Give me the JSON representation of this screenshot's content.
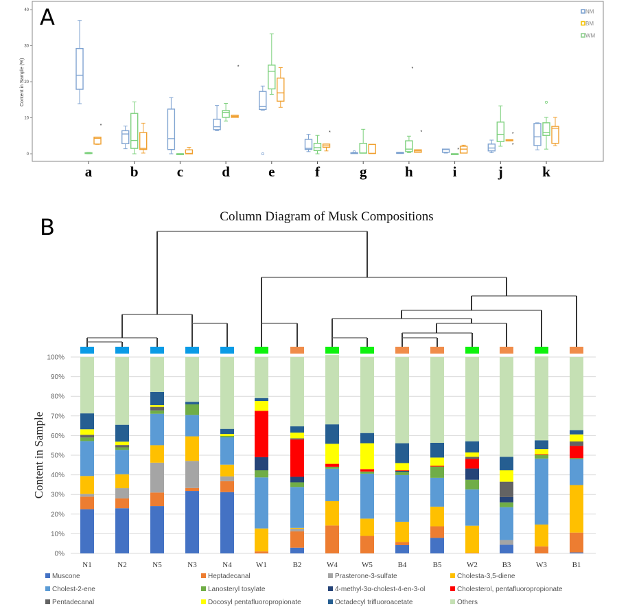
{
  "chart_data": [
    {
      "panel": "A",
      "type": "boxplot",
      "title": "",
      "xlabel": "",
      "ylabel": "Content in Sample (%)",
      "ylim": [
        0,
        40
      ],
      "yticks": [
        "0",
        "10",
        "20",
        "30",
        "40"
      ],
      "ytick_values": [
        0,
        10,
        20,
        30,
        40
      ],
      "legend_placement": "top-right",
      "categories": [
        "a",
        "b",
        "c",
        "d",
        "e",
        "f",
        "g",
        "h",
        "i",
        "j",
        "k"
      ],
      "series": [
        {
          "name": "NM",
          "color": "#7fa3d1",
          "boxes": [
            {
              "min": 13.9,
              "q1": 17.9,
              "median": 21.8,
              "q3": 29.2,
              "max": 37.0,
              "outliers": []
            },
            {
              "min": 1.4,
              "q1": 2.8,
              "median": 5.5,
              "q3": 6.4,
              "max": 7.7,
              "outliers": []
            },
            {
              "min": 0.0,
              "q1": 1.2,
              "median": 4.2,
              "q3": 12.4,
              "max": 15.6,
              "outliers": []
            },
            {
              "min": 6.4,
              "q1": 6.7,
              "median": 7.5,
              "q3": 9.6,
              "max": 13.4,
              "outliers": []
            },
            {
              "min": 12.1,
              "q1": 12.3,
              "median": 13.1,
              "q3": 17.3,
              "max": 18.8,
              "outliers": [
                0.0
              ]
            },
            {
              "min": 0.6,
              "q1": 1.2,
              "median": 1.5,
              "q3": 4.0,
              "max": 5.4,
              "outliers": []
            },
            {
              "min": 0.1,
              "q1": 0.1,
              "median": 0.2,
              "q3": 0.3,
              "max": 0.4,
              "outliers": [
                0.6
              ]
            },
            {
              "min": 0.1,
              "q1": 0.1,
              "median": 0.2,
              "q3": 0.4,
              "max": 0.4,
              "outliers": []
            },
            {
              "min": 0.2,
              "q1": 0.4,
              "median": 1.2,
              "q3": 1.3,
              "max": 1.3,
              "outliers": []
            },
            {
              "min": 0.3,
              "q1": 0.8,
              "median": 1.6,
              "q3": 2.7,
              "max": 3.8,
              "outliers": []
            },
            {
              "min": 1.1,
              "q1": 2.3,
              "median": 4.7,
              "q3": 8.4,
              "max": 8.6,
              "outliers": []
            }
          ]
        },
        {
          "name": "WM",
          "color": "#7dd07d",
          "boxes": [
            {
              "min": 0.0,
              "q1": 0.1,
              "median": 0.2,
              "q3": 0.3,
              "max": 0.4,
              "outliers": []
            },
            {
              "min": 0.0,
              "q1": 1.5,
              "median": 3.7,
              "q3": 11.2,
              "max": 14.4,
              "outliers": []
            },
            {
              "min": 0.0,
              "q1": 0.0,
              "median": 0.0,
              "q3": 0.0,
              "max": 0.0,
              "outliers": []
            },
            {
              "min": 9.1,
              "q1": 10.1,
              "median": 11.5,
              "q3": 12.0,
              "max": 14.0,
              "outliers": []
            },
            {
              "min": 16.5,
              "q1": 18.0,
              "median": 22.9,
              "q3": 24.6,
              "max": 33.3,
              "outliers": []
            },
            {
              "min": 0.0,
              "q1": 0.9,
              "median": 1.7,
              "q3": 2.9,
              "max": 5.1,
              "outliers": []
            },
            {
              "min": 0.2,
              "q1": 0.2,
              "median": 0.2,
              "q3": 2.9,
              "max": 6.8,
              "outliers": []
            },
            {
              "min": 0.3,
              "q1": 0.6,
              "median": 1.3,
              "q3": 3.6,
              "max": 4.9,
              "outliers": [
                23.8
              ]
            },
            {
              "min": 0.0,
              "q1": 0.0,
              "median": 0.0,
              "q3": 0.0,
              "max": 0.0,
              "outliers": [
                1.3
              ]
            },
            {
              "min": 2.1,
              "q1": 3.4,
              "median": 5.4,
              "q3": 8.8,
              "max": 13.3,
              "outliers": []
            },
            {
              "min": 1.3,
              "q1": 5.1,
              "median": 5.9,
              "q3": 8.6,
              "max": 10.1,
              "outliers": [
                14.3
              ]
            }
          ]
        },
        {
          "name": "BM",
          "color": "#f0a030",
          "boxes": [
            {
              "min": 2.6,
              "q1": 2.7,
              "median": 4.3,
              "q3": 4.6,
              "max": 4.6,
              "outliers": [
                8.0
              ]
            },
            {
              "min": 0.2,
              "q1": 1.2,
              "median": 1.5,
              "q3": 5.9,
              "max": 8.5,
              "outliers": []
            },
            {
              "min": 0.0,
              "q1": 0.0,
              "median": 0.1,
              "q3": 1.1,
              "max": 1.8,
              "outliers": []
            },
            {
              "min": 10.1,
              "q1": 10.1,
              "median": 10.4,
              "q3": 10.7,
              "max": 10.7,
              "outliers": [
                24.3
              ]
            },
            {
              "min": 12.9,
              "q1": 14.6,
              "median": 16.9,
              "q3": 21.0,
              "max": 23.9,
              "outliers": []
            },
            {
              "min": 0.8,
              "q1": 1.8,
              "median": 2.2,
              "q3": 2.7,
              "max": 2.7,
              "outliers": [
                6.1
              ]
            },
            {
              "min": 0.1,
              "q1": 0.1,
              "median": 0.1,
              "q3": 2.6,
              "max": 2.6,
              "outliers": []
            },
            {
              "min": 0.4,
              "q1": 0.4,
              "median": 0.8,
              "q3": 1.1,
              "max": 1.1,
              "outliers": [
                6.2
              ]
            },
            {
              "min": 0.2,
              "q1": 0.2,
              "median": 1.3,
              "q3": 2.1,
              "max": 2.4,
              "outliers": []
            },
            {
              "min": 3.6,
              "q1": 3.6,
              "median": 3.7,
              "q3": 3.9,
              "max": 3.9,
              "outliers": [
                5.7,
                2.7
              ]
            },
            {
              "min": 2.2,
              "q1": 2.9,
              "median": 7.1,
              "q3": 7.6,
              "max": 10.1,
              "outliers": []
            }
          ]
        }
      ],
      "legend": [
        {
          "name": "NM",
          "color": "#7fa3d1"
        },
        {
          "name": "BM",
          "color": "#f5c200"
        },
        {
          "name": "WM",
          "color": "#8dcf8d"
        }
      ]
    },
    {
      "panel": "B",
      "type": "bar",
      "stacked": true,
      "title": "Column Diagram of Musk Compositions",
      "xlabel": "",
      "ylabel": "Content in Sample",
      "ylim": [
        0,
        100
      ],
      "yticks": [
        "0%",
        "10%",
        "20%",
        "30%",
        "40%",
        "50%",
        "60%",
        "70%",
        "80%",
        "90%",
        "100%"
      ],
      "grid": true,
      "legend_placement": "bottom",
      "categories": [
        "N1",
        "N2",
        "N5",
        "N3",
        "N4",
        "W1",
        "B2",
        "W4",
        "W5",
        "B4",
        "B5",
        "W2",
        "B3",
        "W3",
        "B1"
      ],
      "group_marker_colors": [
        "#0a9be6",
        "#0a9be6",
        "#0a9be6",
        "#0a9be6",
        "#0a9be6",
        "#0ef20e",
        "#f08c4a",
        "#0ef20e",
        "#0ef20e",
        "#f08c4a",
        "#f08c4a",
        "#0ef20e",
        "#f08c4a",
        "#0ef20e",
        "#f08c4a"
      ],
      "series": [
        {
          "name": "Muscone",
          "color": "#4472c4",
          "values": [
            22.5,
            23.0,
            24.1,
            31.8,
            31.2,
            0.0,
            2.9,
            0.0,
            0.0,
            4.2,
            7.9,
            0.0,
            4.4,
            0.0,
            0.5
          ]
        },
        {
          "name": "Heptadecanal",
          "color": "#ed7d31",
          "values": [
            6.4,
            5.0,
            6.9,
            1.5,
            5.6,
            1.0,
            8.3,
            14.2,
            8.9,
            1.6,
            5.9,
            0.3,
            0.0,
            3.6,
            10.1
          ]
        },
        {
          "name": "Prasterone-3-sulfate",
          "color": "#a5a5a5",
          "values": [
            1.4,
            5.2,
            15.2,
            13.8,
            2.4,
            0.0,
            1.4,
            0.0,
            0.0,
            0.0,
            0.0,
            0.0,
            2.4,
            0.0,
            0.0
          ]
        },
        {
          "name": "Cholesta-3,5-diene",
          "color": "#ffc000",
          "values": [
            9.1,
            7.1,
            8.9,
            12.5,
            6.0,
            11.7,
            0.4,
            12.4,
            8.8,
            10.3,
            10.0,
            13.8,
            0.0,
            11.1,
            24.2
          ]
        },
        {
          "name": "Cholest-2-ene",
          "color": "#5b9bd5",
          "values": [
            17.8,
            12.4,
            16.0,
            10.9,
            13.9,
            26.0,
            20.8,
            16.5,
            22.9,
            23.8,
            14.7,
            18.5,
            16.7,
            33.6,
            13.1
          ]
        },
        {
          "name": "Lanosteryl tosylate",
          "color": "#70ad47",
          "values": [
            1.8,
            1.3,
            1.7,
            5.4,
            0.7,
            3.6,
            2.4,
            1.0,
            1.1,
            1.6,
            5.7,
            4.9,
            2.5,
            1.9,
            0.6
          ]
        },
        {
          "name": "4-methyl-3α-cholest-4-en-3-ol",
          "color": "#264478",
          "values": [
            0.0,
            0.0,
            0.0,
            0.0,
            0.0,
            6.7,
            2.8,
            0.0,
            0.0,
            0.5,
            0.0,
            5.7,
            2.7,
            0.0,
            0.0
          ]
        },
        {
          "name": "Cholesterol, pentafluoropropionate",
          "color": "#ff0000",
          "values": [
            0.0,
            0.0,
            0.0,
            0.0,
            0.0,
            23.6,
            19.0,
            1.5,
            1.2,
            0.3,
            0.4,
            4.9,
            0.0,
            0.3,
            6.2
          ]
        },
        {
          "name": "Pentadecanal",
          "color": "#636363",
          "values": [
            1.4,
            1.2,
            1.8,
            0.0,
            0.0,
            0.0,
            0.6,
            0.0,
            0.0,
            0.0,
            0.0,
            1.1,
            7.8,
            0.0,
            2.3
          ]
        },
        {
          "name": "Docosyl pentafluoropropionate",
          "color": "#ffff00",
          "values": [
            2.8,
            1.7,
            0.9,
            0.0,
            1.0,
            5.0,
            2.9,
            10.2,
            13.2,
            3.7,
            4.2,
            2.2,
            5.8,
            2.6,
            3.6
          ]
        },
        {
          "name": "Octadecyl trifluoroacetate",
          "color": "#255e91",
          "values": [
            8.1,
            8.6,
            6.7,
            1.3,
            2.6,
            1.5,
            3.2,
            9.9,
            5.2,
            10.1,
            7.5,
            5.7,
            6.9,
            4.5,
            2.2
          ]
        },
        {
          "name": "Others",
          "color": "#c5e0b4",
          "values": [
            28.7,
            34.5,
            17.8,
            22.8,
            36.6,
            20.9,
            35.3,
            35.3,
            38.7,
            43.9,
            43.7,
            42.9,
            50.8,
            42.7,
            37.2
          ]
        }
      ],
      "dendrogram_order": [
        "N1",
        "N2",
        "N5",
        "N3",
        "N4",
        "W1",
        "B2",
        "W4",
        "W5",
        "B4",
        "B5",
        "W2",
        "B3",
        "W3",
        "B1"
      ],
      "dendrogram_merges": [
        [
          "N1",
          "N2"
        ],
        [
          "N1+N2",
          "N5"
        ],
        [
          "N3",
          "N4"
        ],
        [
          "N1+N2+N5",
          "N3+N4"
        ],
        [
          "W1",
          "B2"
        ],
        [
          "W4",
          "W5"
        ],
        [
          "B4",
          "B5"
        ],
        [
          "B4+B5",
          "W2"
        ],
        [
          "B4+B5+W2",
          "B3"
        ],
        [
          "W4+W5",
          "B4+B5+W2+B3"
        ],
        [
          "W4+W5+B4+B5+W2+B3",
          "W3"
        ],
        [
          "...+W3",
          "B1"
        ],
        [
          "W1+B2",
          "W4..B1"
        ],
        [
          "N-cluster",
          "W/B-cluster"
        ]
      ]
    }
  ],
  "panels": {
    "a_label": "A",
    "b_label": "B"
  }
}
